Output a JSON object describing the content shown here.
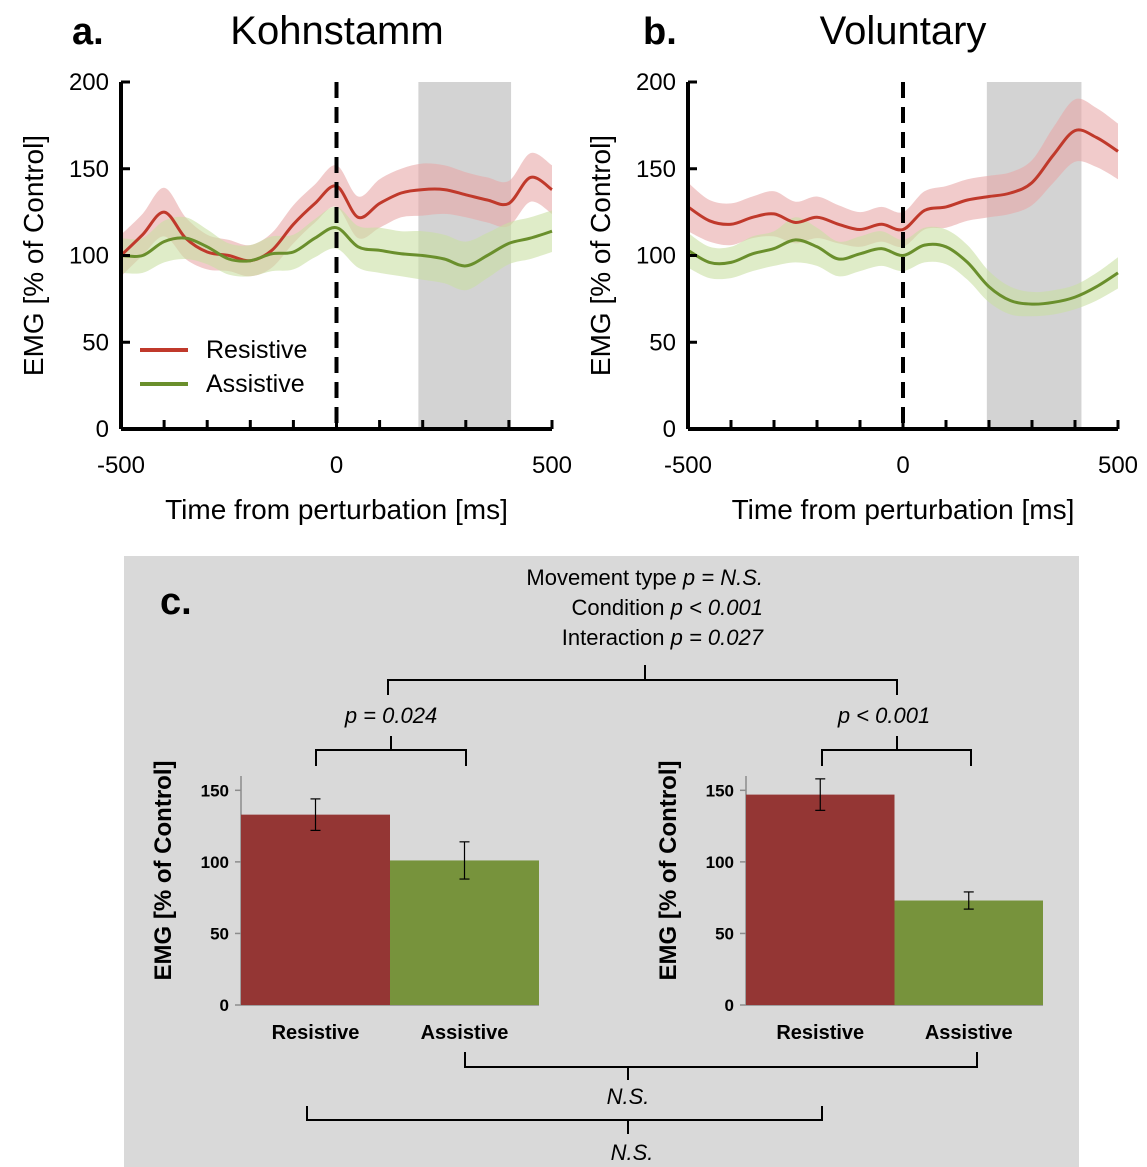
{
  "colors": {
    "resistive": "#c0392b",
    "resistive_band": "#e8a9a9",
    "assistive": "#6a8f2c",
    "assistive_band": "#c9dfa4",
    "window_shade": "#d3d3d3",
    "bar_resistive": "#943634",
    "bar_assistive": "#77933c",
    "panel_c_bg": "#d9d9d9"
  },
  "panel_a": {
    "letter": "a.",
    "title": "Kohnstamm"
  },
  "panel_b": {
    "letter": "b.",
    "title": "Voluntary"
  },
  "panel_c": {
    "letter": "c."
  },
  "legend": {
    "resistive": "Resistive",
    "assistive": "Assistive"
  },
  "stats": {
    "movement_label": "Movement type ",
    "movement_value": "p = N.S.",
    "condition_label": "Condition ",
    "condition_value": "p < 0.001",
    "interaction_label": "Interaction ",
    "interaction_value": "p = 0.027",
    "left_pair": "p = 0.024",
    "right_pair": "p < 0.001",
    "across_assistive": "N.S.",
    "across_resistive": "N.S."
  },
  "chart_data": [
    {
      "type": "line",
      "panel": "a",
      "title": "Kohnstamm",
      "xlabel": "Time from perturbation [ms]",
      "ylabel": "EMG [% of Control]",
      "xlim": [
        -500,
        500
      ],
      "ylim": [
        0,
        200
      ],
      "xticks": [
        -500,
        0,
        500
      ],
      "yticks": [
        0,
        50,
        100,
        150,
        200
      ],
      "event_line_x": 0,
      "shaded_window": [
        190,
        405
      ],
      "legend": "left",
      "x": [
        -500,
        -450,
        -400,
        -350,
        -300,
        -250,
        -200,
        -150,
        -100,
        -50,
        0,
        50,
        100,
        150,
        200,
        250,
        300,
        350,
        400,
        450,
        500
      ],
      "series": [
        {
          "name": "Resistive",
          "values": [
            100,
            112,
            125,
            110,
            102,
            100,
            97,
            103,
            118,
            130,
            140,
            122,
            130,
            136,
            138,
            138,
            135,
            132,
            130,
            145,
            138
          ],
          "band": [
            12,
            12,
            14,
            12,
            10,
            9,
            9,
            10,
            11,
            11,
            12,
            12,
            14,
            14,
            15,
            14,
            13,
            13,
            13,
            14,
            14
          ]
        },
        {
          "name": "Assistive",
          "values": [
            100,
            100,
            108,
            110,
            105,
            98,
            97,
            101,
            102,
            110,
            116,
            105,
            103,
            101,
            100,
            98,
            94,
            100,
            107,
            110,
            114
          ],
          "band": [
            10,
            10,
            12,
            12,
            10,
            9,
            9,
            10,
            10,
            11,
            12,
            12,
            13,
            13,
            14,
            14,
            14,
            13,
            12,
            12,
            12
          ]
        }
      ]
    },
    {
      "type": "line",
      "panel": "b",
      "title": "Voluntary",
      "xlabel": "Time from perturbation [ms]",
      "ylabel": "EMG [% of Control]",
      "xlim": [
        -500,
        500
      ],
      "ylim": [
        0,
        200
      ],
      "xticks": [
        -500,
        0,
        500
      ],
      "yticks": [
        0,
        50,
        100,
        150,
        200
      ],
      "event_line_x": 0,
      "shaded_window": [
        195,
        415
      ],
      "x": [
        -500,
        -450,
        -400,
        -350,
        -300,
        -250,
        -200,
        -150,
        -100,
        -50,
        0,
        50,
        100,
        150,
        200,
        250,
        300,
        350,
        400,
        450,
        500
      ],
      "series": [
        {
          "name": "Resistive",
          "values": [
            128,
            120,
            118,
            122,
            124,
            119,
            122,
            118,
            115,
            118,
            115,
            126,
            128,
            132,
            134,
            136,
            142,
            158,
            172,
            168,
            160
          ],
          "band": [
            14,
            12,
            12,
            12,
            13,
            12,
            12,
            11,
            10,
            10,
            10,
            11,
            12,
            12,
            12,
            12,
            13,
            16,
            18,
            17,
            16
          ]
        },
        {
          "name": "Assistive",
          "values": [
            103,
            96,
            96,
            101,
            104,
            109,
            105,
            98,
            101,
            104,
            100,
            106,
            105,
            96,
            82,
            74,
            72,
            73,
            76,
            82,
            90
          ],
          "band": [
            10,
            9,
            9,
            10,
            10,
            13,
            11,
            10,
            10,
            10,
            9,
            10,
            10,
            10,
            9,
            8,
            7,
            7,
            7,
            8,
            9
          ]
        }
      ]
    },
    {
      "type": "bar",
      "panel": "c-left",
      "ylabel": "EMG [% of Control]",
      "ylim": [
        0,
        160
      ],
      "yticks": [
        0,
        50,
        100,
        150
      ],
      "categories": [
        "Resistive",
        "Assistive"
      ],
      "values": [
        133,
        101
      ],
      "errors": [
        11,
        13
      ]
    },
    {
      "type": "bar",
      "panel": "c-right",
      "ylabel": "EMG [% of Control]",
      "ylim": [
        0,
        160
      ],
      "yticks": [
        0,
        50,
        100,
        150
      ],
      "categories": [
        "Resistive",
        "Assistive"
      ],
      "values": [
        147,
        73
      ],
      "errors": [
        11,
        6
      ]
    }
  ]
}
